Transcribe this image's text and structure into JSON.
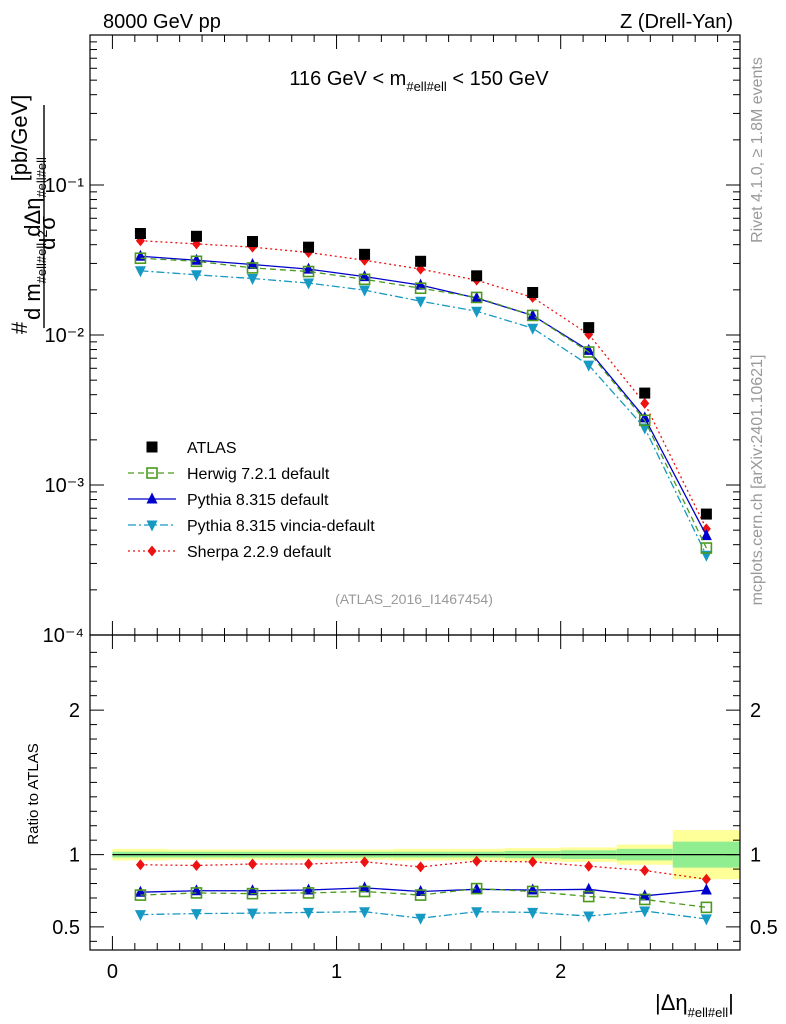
{
  "header": {
    "left": "8000 GeV pp",
    "right": "Z (Drell-Yan)",
    "plot_title": "116 GeV < m#ell#ell < 150 GeV",
    "side_top": "Rivet 4.1.0, ≥ 1.8M events",
    "side_bottom": "mcplots.cern.ch [arXiv:2401.10621]",
    "watermark": "(ATLAS_2016_I1467454)"
  },
  "chart_data": [
    {
      "type": "line",
      "panel": "main",
      "yscale": "log",
      "ylabel": "d²σ / d m#ell#ell dΔη#ell#ell [pb/GeV]",
      "ylim": [
        0.0001,
        1
      ],
      "xlim": [
        -0.1,
        2.8
      ],
      "x": [
        0.125,
        0.375,
        0.625,
        0.875,
        1.125,
        1.375,
        1.625,
        1.875,
        2.125,
        2.375,
        2.65
      ],
      "yticks": [
        {
          "v": 0.1,
          "label": "10⁻¹"
        },
        {
          "v": 0.01,
          "label": "10⁻²"
        },
        {
          "v": 0.001,
          "label": "10⁻³"
        },
        {
          "v": 0.0001,
          "label": "10⁻⁴"
        }
      ],
      "series": [
        {
          "name": "ATLAS",
          "values": [
            0.0475,
            0.0455,
            0.042,
            0.0385,
            0.0345,
            0.031,
            0.0248,
            0.0192,
            0.0112,
            0.0041,
            0.00064
          ]
        },
        {
          "name": "Herwig 7.2.1 default",
          "values": [
            0.0325,
            0.031,
            0.028,
            0.0265,
            0.0235,
            0.0205,
            0.0178,
            0.0135,
            0.0077,
            0.0027,
            0.00038
          ]
        },
        {
          "name": "Pythia 8.315 default",
          "values": [
            0.0335,
            0.0315,
            0.0295,
            0.0275,
            0.0245,
            0.0215,
            0.0176,
            0.0135,
            0.0079,
            0.0028,
            0.00046
          ]
        },
        {
          "name": "Pythia 8.315 vincia-default",
          "values": [
            0.0268,
            0.0252,
            0.0238,
            0.0222,
            0.0199,
            0.0168,
            0.0144,
            0.0111,
            0.0063,
            0.0024,
            0.00034
          ]
        },
        {
          "name": "Sherpa 2.2.9 default",
          "values": [
            0.0425,
            0.0405,
            0.0385,
            0.0355,
            0.0315,
            0.0275,
            0.0232,
            0.0178,
            0.0101,
            0.0035,
            0.00051
          ]
        }
      ]
    },
    {
      "type": "line",
      "panel": "ratio",
      "ylabel": "Ratio to ATLAS",
      "xlabel": "|Δη#ell#ell|",
      "ylim": [
        0.34,
        2.52
      ],
      "xlim": [
        -0.1,
        2.8
      ],
      "x": [
        0.125,
        0.375,
        0.625,
        0.875,
        1.125,
        1.375,
        1.625,
        1.875,
        2.125,
        2.375,
        2.65
      ],
      "x_edges": [
        0,
        0.25,
        0.5,
        0.75,
        1,
        1.25,
        1.5,
        1.75,
        2,
        2.25,
        2.5,
        2.8
      ],
      "xticks": [
        0,
        1,
        2
      ],
      "yticks": [
        0.5,
        1,
        2
      ],
      "band_stat_half": [
        0.02,
        0.02,
        0.02,
        0.02,
        0.02,
        0.02,
        0.02,
        0.025,
        0.03,
        0.04,
        0.09
      ],
      "band_total_half": [
        0.04,
        0.035,
        0.035,
        0.035,
        0.035,
        0.04,
        0.04,
        0.045,
        0.05,
        0.07,
        0.17
      ],
      "series": [
        {
          "name": "Herwig 7.2.1 default",
          "values": [
            0.72,
            0.735,
            0.73,
            0.735,
            0.745,
            0.72,
            0.765,
            0.745,
            0.71,
            0.69,
            0.635
          ]
        },
        {
          "name": "Pythia 8.315 default",
          "values": [
            0.74,
            0.75,
            0.75,
            0.755,
            0.77,
            0.745,
            0.76,
            0.755,
            0.76,
            0.715,
            0.755
          ]
        },
        {
          "name": "Pythia 8.315 vincia-default",
          "values": [
            0.585,
            0.592,
            0.595,
            0.6,
            0.605,
            0.56,
            0.605,
            0.6,
            0.575,
            0.61,
            0.555
          ]
        },
        {
          "name": "Sherpa 2.2.9 default",
          "values": [
            0.93,
            0.925,
            0.935,
            0.935,
            0.95,
            0.915,
            0.955,
            0.95,
            0.92,
            0.89,
            0.83
          ]
        }
      ]
    }
  ],
  "legend": [
    {
      "name": "ATLAS",
      "color": "#000000",
      "marker": "square-filled",
      "line": "none"
    },
    {
      "name": "Herwig 7.2.1 default",
      "color": "#4a9a1c",
      "marker": "square-open",
      "line": "dashed"
    },
    {
      "name": "Pythia 8.315 default",
      "color": "#0000cc",
      "marker": "triangle-up",
      "line": "solid"
    },
    {
      "name": "Pythia 8.315 vincia-default",
      "color": "#1699c2",
      "marker": "triangle-down",
      "line": "dashdot"
    },
    {
      "name": "Sherpa 2.2.9 default",
      "color": "#ee1111",
      "marker": "diamond",
      "line": "dotted"
    }
  ],
  "band_colors": {
    "stat": "#90ee90",
    "total": "#ffff99"
  }
}
